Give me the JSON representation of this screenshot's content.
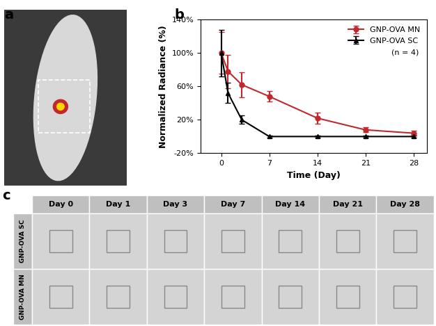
{
  "panels": [
    "a",
    "b",
    "c"
  ],
  "chart_data": {
    "type": "line",
    "x": [
      0,
      1,
      3,
      7,
      14,
      21,
      28
    ],
    "xlim": [
      -3,
      30
    ],
    "xticks": [
      0,
      7,
      14,
      21,
      28
    ],
    "ylim": [
      -20,
      140
    ],
    "yticks": [
      {
        "value": -20,
        "label": "-20%"
      },
      {
        "value": 20,
        "label": "20%"
      },
      {
        "value": 60,
        "label": "60%"
      },
      {
        "value": 100,
        "label": "100%"
      },
      {
        "value": 140,
        "label": "140%"
      }
    ],
    "x_label": "Time (Day)",
    "y_label": "Normalized Radiance (%)",
    "legend": "upper right",
    "annotations": [
      "(n = 4)"
    ],
    "series": [
      {
        "name": "GNP-OVA MN",
        "color": "#c0282d",
        "marker": "circle",
        "line_style": "solid",
        "values": [
          100,
          78,
          62,
          48,
          22,
          8,
          4
        ],
        "errors": [
          25,
          20,
          15,
          6,
          7,
          3,
          3
        ]
      },
      {
        "name": "GNP-OVA SC",
        "color": "#000000",
        "marker": "triangle",
        "line_style": "solid",
        "values": [
          100,
          52,
          20,
          0,
          0,
          0,
          0
        ],
        "errors": [
          28,
          12,
          5,
          1,
          1,
          1,
          1
        ]
      }
    ]
  },
  "image_grid": {
    "columns": [
      "Day 0",
      "Day 1",
      "Day 3",
      "Day 7",
      "Day 14",
      "Day 21",
      "Day 28"
    ],
    "rows": [
      "GNP-OVA SC",
      "GNP-OVA MN"
    ]
  }
}
